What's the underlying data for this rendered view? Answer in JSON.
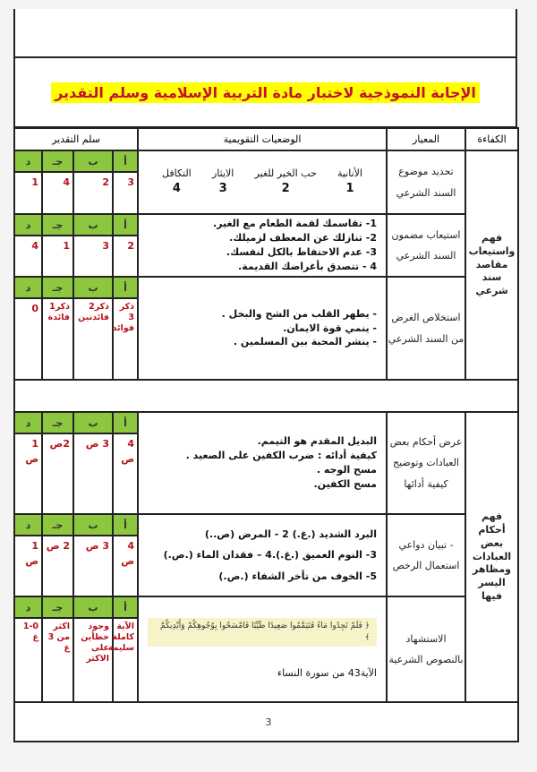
{
  "title": "الإجابة النموذجية لاختبار مادة التربية الإسلامية وسلم التقدير",
  "headers": {
    "grading": "سلم التقدير",
    "situations": "الوضعيات التقويمية",
    "criterion": "المعيار",
    "competency": "الكفاءة"
  },
  "grade_labels": {
    "a": "أ",
    "b": "ب",
    "j": "جـ",
    "d": "د"
  },
  "competencies": [
    "فهم واستيعاب مقاصد سند شرعي",
    "فهم أحكام بعض العبادات ومظاهر اليسر فيها"
  ],
  "rows": [
    {
      "criterion": "تحديد موضوع السند الشرعي",
      "items": [
        {
          "label": "الأنانية",
          "num": "1"
        },
        {
          "label": "حب الخير للغير",
          "num": "2"
        },
        {
          "label": "الايثار",
          "num": "3"
        },
        {
          "label": "التكافل",
          "num": "4"
        }
      ],
      "grades": {
        "a": "3",
        "b": "2",
        "j": "4",
        "d": "1"
      }
    },
    {
      "criterion": "استيعاب مضمون السند الشرعي",
      "lines": [
        "1- تقاسمك لقمة الطعام مع الغير.",
        "2- تنازلك عن المعطف لزميلك.",
        "3- عدم الاحتفاظ بالكل لنفسك.",
        "4 - تتصدق بأغراضك القديمة."
      ],
      "grades": {
        "a": "2",
        "b": "3",
        "j": "1",
        "d": "4"
      }
    },
    {
      "criterion": "استخلاص الغرض من السند الشرعي",
      "lines": [
        "- يطهر القلب من الشح والبخل .",
        "- ينمي قوة الايمان.",
        "- ينشر المحبة بين المسلمين ."
      ],
      "grades": {
        "a": "ذكر 3 فوائد",
        "b": "ذكر2 فائدتين",
        "j": "ذكر1 فائدة",
        "d": "0"
      }
    },
    {
      "criterion": "عرض أحكام بعض العبادات وتوضيح كيفية أدائها",
      "lines": [
        "البديل المقدم هو التيمم.",
        "كيفية أدائه : ضرب الكفين على الصعيد .",
        "مسح الوجه .",
        "مسح الكفين."
      ],
      "grades": {
        "a": "4 ص",
        "b": "3 ص",
        "j": "2ص",
        "d": "1 ص"
      }
    },
    {
      "criterion": "- تبيان دواعي استعمال الرخص",
      "lines": [
        "البرد الشديد (.غ.)   2 - المرض (ص..)",
        "3- النوم العميق (.غ.).4 – فقدان الماء (.ص.)",
        "5- الخوف من تأخر الشفاء (.ص.)"
      ],
      "grades": {
        "a": "4 ص",
        "b": "3 ص",
        "j": "2 ص",
        "d": "1 ص"
      }
    },
    {
      "criterion": "الاستشهاد بالنصوص الشرعية",
      "verse": "﴿ فَلَمْ تَجِدُوا مَاءً فَتَيَمَّمُوا صَعِيدًا طَيِّبًا فَامْسَحُوا بِوُجُوهِكُمْ وَأَيْدِيكُمْ ﴾",
      "reference": "الآية43 من سورة النساء",
      "grades": {
        "a": "الآية كاملة سليمة",
        "b": "وجود خطأين على الاكثر",
        "j": "اكثر من 3 غ",
        "d": "1-0 غ"
      }
    }
  ],
  "page_number": "3",
  "colors": {
    "grade_header": "#8dc63f",
    "grade_value": "#b5121b",
    "title_text": "#c8102e",
    "title_highlight": "#ffff00"
  }
}
